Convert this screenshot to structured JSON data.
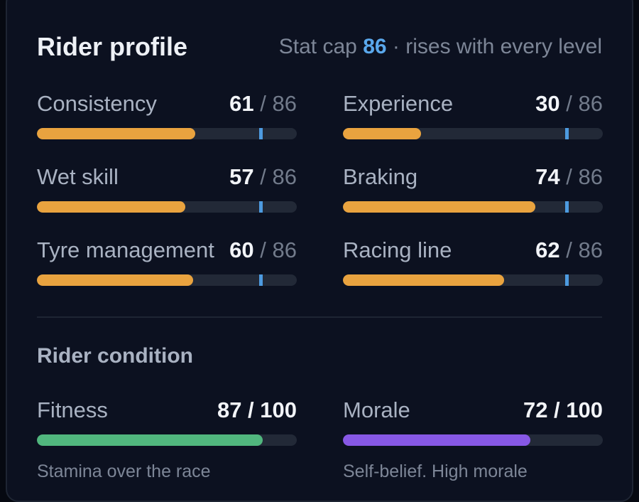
{
  "profile": {
    "title": "Rider profile",
    "cap_prefix": "Stat cap",
    "cap_value": "86",
    "cap_suffix": "· rises with every level",
    "cap_number": 86,
    "stats": [
      {
        "label": "Consistency",
        "value": "61",
        "max": "86",
        "value_num": 61
      },
      {
        "label": "Experience",
        "value": "30",
        "max": "86",
        "value_num": 30
      },
      {
        "label": "Wet skill",
        "value": "57",
        "max": "86",
        "value_num": 57
      },
      {
        "label": "Braking",
        "value": "74",
        "max": "86",
        "value_num": 74
      },
      {
        "label": "Tyre management",
        "value": "60",
        "max": "86",
        "value_num": 60
      },
      {
        "label": "Racing line",
        "value": "62",
        "max": "86",
        "value_num": 62
      }
    ],
    "bar_colors": {
      "stat": "#e9a33f",
      "cap_marker": "#4d9be0"
    }
  },
  "condition": {
    "title": "Rider condition",
    "items": [
      {
        "label": "Fitness",
        "value": "87 / 100",
        "value_num": 87,
        "max_num": 100,
        "desc": "Stamina over the race",
        "color": "#51b77e"
      },
      {
        "label": "Morale",
        "value": "72 / 100",
        "value_num": 72,
        "max_num": 100,
        "desc": "Self-belief. High morale",
        "color": "#8758e5"
      }
    ]
  }
}
